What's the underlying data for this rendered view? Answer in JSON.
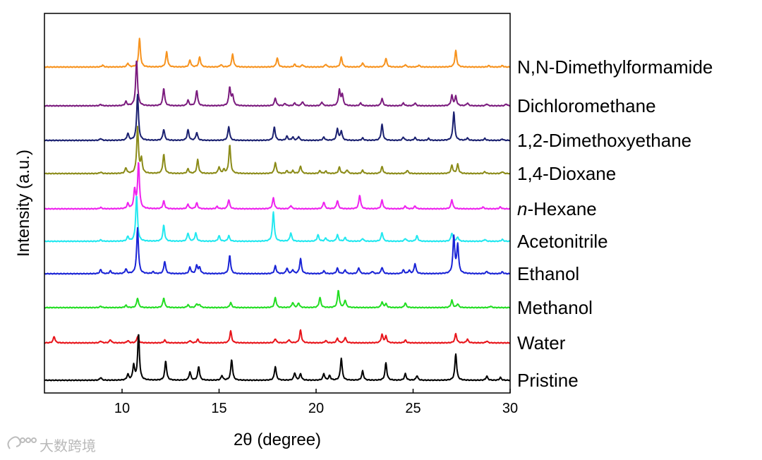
{
  "chart_data": {
    "type": "line",
    "title": "",
    "xlabel": "2θ (degree)",
    "ylabel": "Intensity (a.u.)",
    "xlim": [
      6,
      30
    ],
    "xticks": [
      10,
      15,
      20,
      25,
      30
    ],
    "grid": false,
    "legend": "labels at right end of each trace",
    "series": [
      {
        "name": "N,N-Dimethylformamide",
        "color": "#f7931e",
        "peaks": [
          [
            9.0,
            4
          ],
          [
            10.3,
            8
          ],
          [
            10.9,
            62
          ],
          [
            12.3,
            33
          ],
          [
            13.5,
            15
          ],
          [
            14.0,
            22
          ],
          [
            15.1,
            5
          ],
          [
            15.7,
            28
          ],
          [
            18.0,
            20
          ],
          [
            18.9,
            6
          ],
          [
            19.3,
            5
          ],
          [
            20.5,
            6
          ],
          [
            21.3,
            22
          ],
          [
            22.4,
            9
          ],
          [
            23.6,
            19
          ],
          [
            24.6,
            5
          ],
          [
            25.3,
            4
          ],
          [
            27.2,
            36
          ],
          [
            28.9,
            3
          ],
          [
            29.6,
            3
          ]
        ]
      },
      {
        "name": "Dichloromethane",
        "color": "#7b1b7e",
        "peaks": [
          [
            8.9,
            3
          ],
          [
            10.2,
            9
          ],
          [
            10.75,
            100
          ],
          [
            12.15,
            38
          ],
          [
            13.4,
            12
          ],
          [
            13.85,
            34
          ],
          [
            15.55,
            40
          ],
          [
            15.7,
            22
          ],
          [
            17.9,
            17
          ],
          [
            18.4,
            5
          ],
          [
            18.9,
            6
          ],
          [
            19.3,
            9
          ],
          [
            20.3,
            8
          ],
          [
            21.2,
            34
          ],
          [
            21.35,
            24
          ],
          [
            22.3,
            6
          ],
          [
            23.4,
            16
          ],
          [
            24.5,
            6
          ],
          [
            25.1,
            6
          ],
          [
            27.0,
            22
          ],
          [
            27.2,
            20
          ],
          [
            27.8,
            6
          ],
          [
            28.8,
            4
          ],
          [
            29.8,
            4
          ]
        ]
      },
      {
        "name": "1,2-Dimethoxyethane",
        "color": "#1a2070",
        "peaks": [
          [
            8.9,
            4
          ],
          [
            10.3,
            15
          ],
          [
            10.8,
            100
          ],
          [
            12.15,
            24
          ],
          [
            13.4,
            23
          ],
          [
            13.85,
            17
          ],
          [
            15.5,
            30
          ],
          [
            17.85,
            29
          ],
          [
            18.5,
            9
          ],
          [
            18.8,
            7
          ],
          [
            19.1,
            8
          ],
          [
            20.4,
            7
          ],
          [
            21.1,
            25
          ],
          [
            21.3,
            20
          ],
          [
            22.4,
            5
          ],
          [
            23.4,
            35
          ],
          [
            24.5,
            7
          ],
          [
            25.1,
            6
          ],
          [
            25.8,
            4
          ],
          [
            27.1,
            62
          ],
          [
            27.8,
            5
          ],
          [
            28.7,
            4
          ],
          [
            29.6,
            3
          ]
        ]
      },
      {
        "name": "1,4-Dioxane",
        "color": "#8b8b18",
        "peaks": [
          [
            8.9,
            3
          ],
          [
            10.2,
            12
          ],
          [
            10.8,
            100
          ],
          [
            11.0,
            30
          ],
          [
            12.15,
            42
          ],
          [
            13.4,
            10
          ],
          [
            13.9,
            30
          ],
          [
            15.0,
            14
          ],
          [
            15.25,
            8
          ],
          [
            15.55,
            62
          ],
          [
            17.9,
            24
          ],
          [
            18.5,
            6
          ],
          [
            18.8,
            6
          ],
          [
            19.2,
            16
          ],
          [
            20.2,
            6
          ],
          [
            20.5,
            5
          ],
          [
            21.2,
            14
          ],
          [
            21.6,
            8
          ],
          [
            22.4,
            7
          ],
          [
            23.4,
            15
          ],
          [
            24.7,
            7
          ],
          [
            27.0,
            18
          ],
          [
            27.3,
            20
          ],
          [
            28.7,
            4
          ],
          [
            29.6,
            4
          ]
        ]
      },
      {
        "name": "n-Hexane",
        "color": "#ee22ee",
        "label_prefix": "n",
        "label_suffix": "-Hexane",
        "peaks": [
          [
            8.9,
            3
          ],
          [
            10.3,
            11
          ],
          [
            10.65,
            40
          ],
          [
            10.85,
            100
          ],
          [
            12.15,
            17
          ],
          [
            13.4,
            10
          ],
          [
            13.85,
            13
          ],
          [
            14.9,
            5
          ],
          [
            15.5,
            20
          ],
          [
            17.8,
            24
          ],
          [
            18.7,
            7
          ],
          [
            20.4,
            15
          ],
          [
            21.1,
            18
          ],
          [
            22.25,
            30
          ],
          [
            23.4,
            19
          ],
          [
            24.6,
            6
          ],
          [
            25.1,
            6
          ],
          [
            27.0,
            20
          ],
          [
            28.6,
            4
          ],
          [
            29.5,
            4
          ]
        ]
      },
      {
        "name": "Acetonitrile",
        "color": "#22e8f0",
        "peaks": [
          [
            8.9,
            3
          ],
          [
            10.3,
            10
          ],
          [
            10.75,
            100
          ],
          [
            12.15,
            35
          ],
          [
            13.4,
            18
          ],
          [
            13.8,
            18
          ],
          [
            15.0,
            12
          ],
          [
            15.5,
            12
          ],
          [
            17.8,
            64
          ],
          [
            18.7,
            18
          ],
          [
            20.1,
            14
          ],
          [
            20.5,
            7
          ],
          [
            21.1,
            14
          ],
          [
            21.5,
            8
          ],
          [
            22.4,
            6
          ],
          [
            23.4,
            19
          ],
          [
            24.6,
            6
          ],
          [
            25.2,
            12
          ],
          [
            27.0,
            18
          ],
          [
            27.3,
            9
          ],
          [
            28.7,
            4
          ],
          [
            29.6,
            4
          ]
        ]
      },
      {
        "name": "Ethanol",
        "color": "#1a24d6",
        "peaks": [
          [
            8.9,
            9
          ],
          [
            9.4,
            6
          ],
          [
            10.2,
            10
          ],
          [
            10.8,
            100
          ],
          [
            11.6,
            4
          ],
          [
            12.2,
            27
          ],
          [
            13.5,
            14
          ],
          [
            13.85,
            18
          ],
          [
            14.0,
            13
          ],
          [
            15.55,
            40
          ],
          [
            17.9,
            17
          ],
          [
            18.5,
            12
          ],
          [
            18.8,
            8
          ],
          [
            19.2,
            33
          ],
          [
            20.4,
            6
          ],
          [
            21.1,
            12
          ],
          [
            21.5,
            8
          ],
          [
            22.2,
            13
          ],
          [
            22.9,
            5
          ],
          [
            23.4,
            14
          ],
          [
            24.5,
            8
          ],
          [
            24.8,
            7
          ],
          [
            25.1,
            22
          ],
          [
            27.1,
            80
          ],
          [
            27.3,
            62
          ],
          [
            28.8,
            5
          ],
          [
            29.6,
            4
          ]
        ]
      },
      {
        "name": "Methanol",
        "color": "#22dd22",
        "peaks": [
          [
            8.9,
            3
          ],
          [
            10.2,
            5
          ],
          [
            10.8,
            21
          ],
          [
            12.15,
            21
          ],
          [
            13.4,
            6
          ],
          [
            13.85,
            8
          ],
          [
            14.0,
            6
          ],
          [
            15.6,
            11
          ],
          [
            17.9,
            22
          ],
          [
            18.8,
            11
          ],
          [
            19.1,
            10
          ],
          [
            20.2,
            22
          ],
          [
            21.15,
            38
          ],
          [
            21.5,
            16
          ],
          [
            23.4,
            12
          ],
          [
            23.6,
            8
          ],
          [
            24.6,
            10
          ],
          [
            27.0,
            16
          ],
          [
            27.3,
            8
          ],
          [
            29.0,
            3
          ]
        ]
      },
      {
        "name": "Water",
        "color": "#e8141a",
        "peaks": [
          [
            6.5,
            14
          ],
          [
            8.9,
            4
          ],
          [
            9.4,
            7
          ],
          [
            10.3,
            5
          ],
          [
            10.8,
            14
          ],
          [
            12.2,
            6
          ],
          [
            13.5,
            5
          ],
          [
            13.9,
            8
          ],
          [
            15.6,
            26
          ],
          [
            17.9,
            9
          ],
          [
            18.6,
            7
          ],
          [
            19.2,
            28
          ],
          [
            20.5,
            5
          ],
          [
            21.1,
            10
          ],
          [
            21.5,
            12
          ],
          [
            23.4,
            18
          ],
          [
            23.6,
            14
          ],
          [
            24.6,
            6
          ],
          [
            27.2,
            20
          ],
          [
            27.8,
            8
          ],
          [
            28.8,
            4
          ]
        ]
      },
      {
        "name": "Pristine",
        "color": "#000000",
        "peaks": [
          [
            8.9,
            6
          ],
          [
            10.3,
            12
          ],
          [
            10.6,
            32
          ],
          [
            10.85,
            100
          ],
          [
            12.25,
            42
          ],
          [
            13.5,
            18
          ],
          [
            13.95,
            30
          ],
          [
            15.15,
            10
          ],
          [
            15.65,
            45
          ],
          [
            17.9,
            30
          ],
          [
            18.9,
            16
          ],
          [
            19.2,
            14
          ],
          [
            20.4,
            14
          ],
          [
            20.7,
            10
          ],
          [
            21.3,
            48
          ],
          [
            22.4,
            20
          ],
          [
            23.6,
            38
          ],
          [
            24.6,
            14
          ],
          [
            25.2,
            10
          ],
          [
            27.2,
            58
          ],
          [
            28.8,
            9
          ],
          [
            29.5,
            6
          ]
        ]
      }
    ]
  },
  "watermark": {
    "text": "大数跨境",
    "icon": "logo-swirl-icon"
  }
}
